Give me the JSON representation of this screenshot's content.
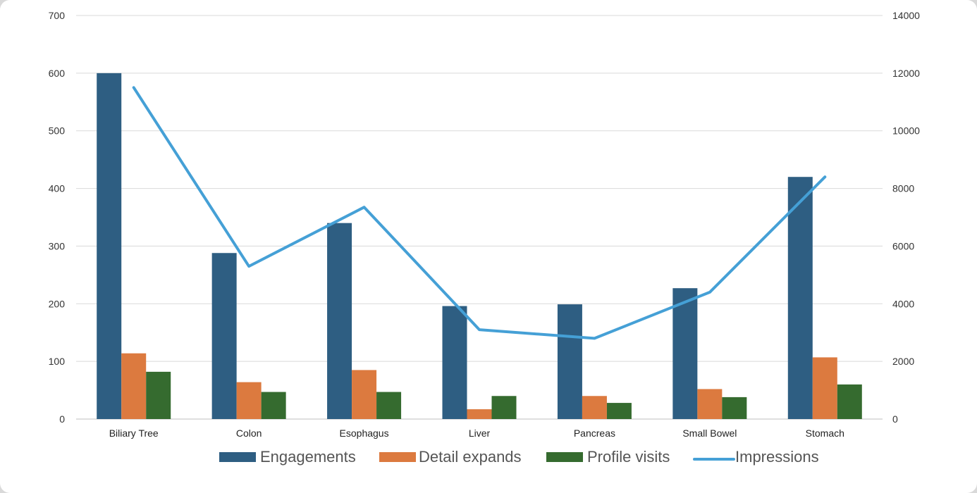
{
  "chart_data": {
    "type": "bar",
    "categories": [
      "Biliary Tree",
      "Colon",
      "Esophagus",
      "Liver",
      "Pancreas",
      "Small Bowel",
      "Stomach"
    ],
    "series": [
      {
        "name": "Engagements",
        "kind": "bar",
        "axis": "left",
        "color": "#2e5e82",
        "values": [
          600,
          288,
          340,
          196,
          199,
          227,
          420
        ]
      },
      {
        "name": "Detail expands",
        "kind": "bar",
        "axis": "left",
        "color": "#dc7a3f",
        "values": [
          114,
          64,
          85,
          17,
          40,
          52,
          107
        ]
      },
      {
        "name": "Profile visits",
        "kind": "bar",
        "axis": "left",
        "color": "#356b2f",
        "values": [
          82,
          47,
          47,
          40,
          28,
          38,
          60
        ]
      },
      {
        "name": "Impressions",
        "kind": "line",
        "axis": "right",
        "color": "#45a0d6",
        "values": [
          11500,
          5300,
          7350,
          3100,
          2800,
          4400,
          8400
        ]
      }
    ],
    "y_left": {
      "min": 0,
      "max": 700,
      "ticks": [
        0,
        100,
        200,
        300,
        400,
        500,
        600,
        700
      ]
    },
    "y_right": {
      "min": 0,
      "max": 14000,
      "ticks": [
        0,
        2000,
        4000,
        6000,
        8000,
        10000,
        12000,
        14000
      ]
    },
    "title": "",
    "xlabel": "",
    "ylabel": "",
    "grid": true,
    "legend_position": "bottom"
  }
}
